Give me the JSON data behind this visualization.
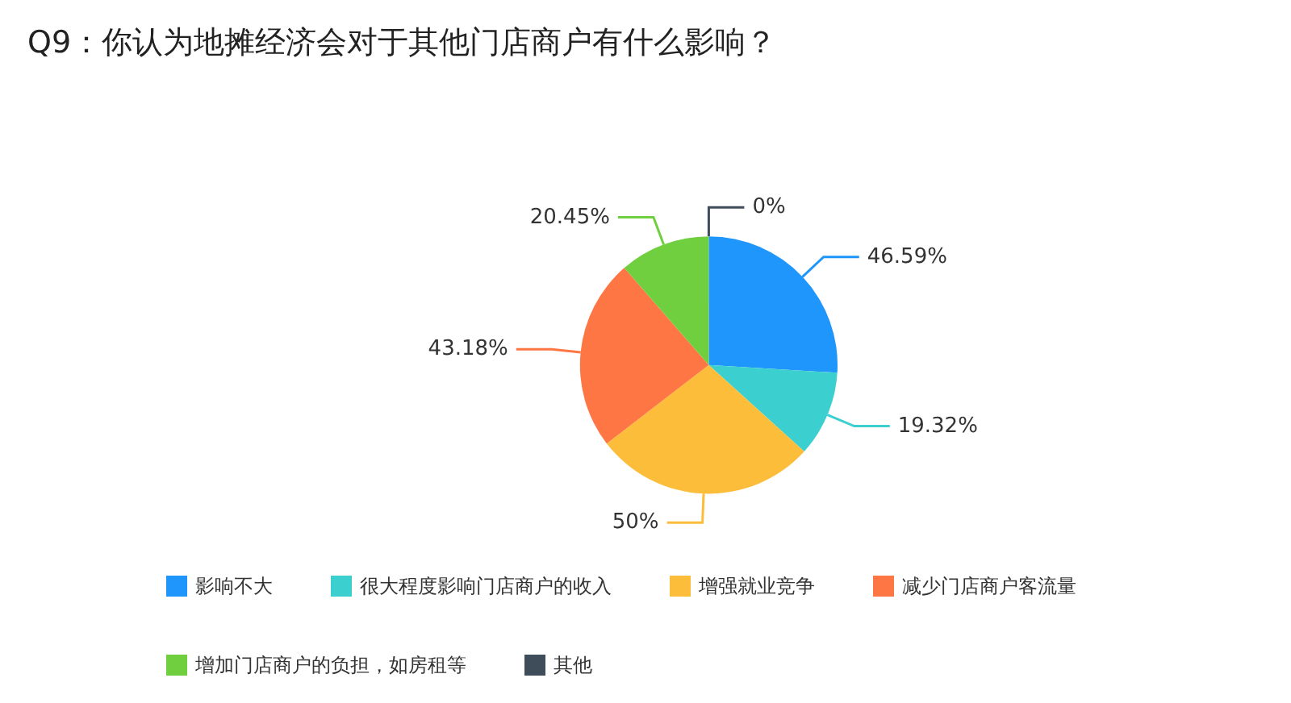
{
  "chart_data": {
    "type": "pie",
    "title": "Q9：你认为地摊经济会对于其他门店商户有什么影响？",
    "categories": [
      "影响不大",
      "很大程度影响门店商户的收入",
      "增强就业竞争",
      "减少门店商户客流量",
      "增加门店商户的负担，如房租等",
      "其他"
    ],
    "values": [
      46.59,
      19.32,
      50,
      43.18,
      20.45,
      0
    ],
    "value_labels": [
      "46.59%",
      "19.32%",
      "50%",
      "43.18%",
      "20.45%",
      "0%"
    ],
    "colors": [
      "#1e96fc",
      "#3ccfcf",
      "#fbbd3a",
      "#fd7643",
      "#6fcf3e",
      "#3f4d5b"
    ],
    "legend": "bottom"
  }
}
